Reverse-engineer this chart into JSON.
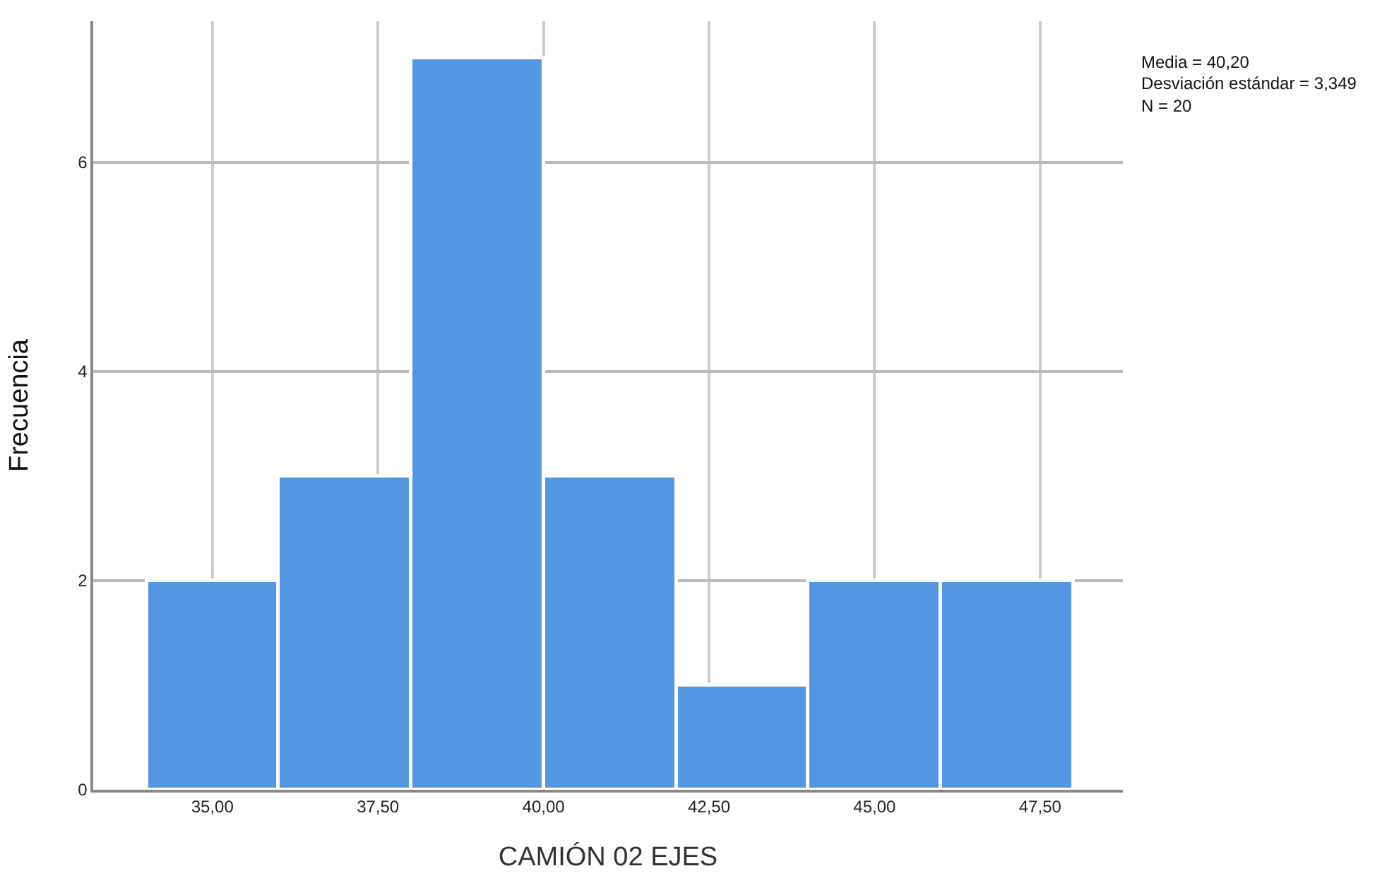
{
  "chart_data": {
    "type": "histogram",
    "xlabel": "CAMIÓN 02 EJES",
    "ylabel": "Frecuencia",
    "bins": [
      34,
      36,
      38,
      40,
      42,
      44,
      46,
      48
    ],
    "values": [
      2,
      3,
      7,
      3,
      1,
      2,
      2
    ],
    "color": "#5596e3",
    "xlim": [
      33.2,
      48.75
    ],
    "xticks": [
      {
        "value": 35,
        "label": "35,00"
      },
      {
        "value": 37.5,
        "label": "37,50"
      },
      {
        "value": 40,
        "label": "40,00"
      },
      {
        "value": 42.5,
        "label": "42,50"
      },
      {
        "value": 45,
        "label": "45,00"
      },
      {
        "value": 47.5,
        "label": "47,50"
      }
    ],
    "ylim": [
      0,
      7.35
    ],
    "yticks": [
      0,
      2,
      4,
      6
    ],
    "grid": true,
    "annotations": [
      "Media = 40,20",
      "Desviación estándar = 3,349",
      "N = 20"
    ]
  }
}
